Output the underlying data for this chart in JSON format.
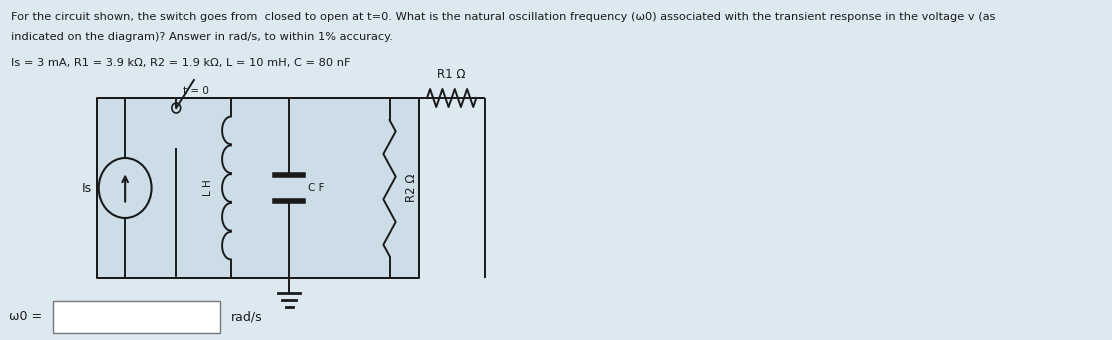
{
  "title_line1": "For the circuit shown, the switch goes from  closed to open at t=0. What is the natural oscillation frequency (ω0) associated with the transient response in the voltage v (as",
  "title_line2": "indicated on the diagram)? Answer in rad/s, to within 1% accuracy.",
  "params": "Is = 3 mA, R1 = 3.9 kΩ, R2 = 1.9 kΩ, L = 10 mH, C = 80 nF",
  "bg_color": "#dce9f0",
  "text_color": "#1a1a1a",
  "box_bg": "#ccdde8",
  "label_R1": "R1 Ω",
  "label_R2": "R2 Ω",
  "label_Is": "Is",
  "label_t0": "t = 0",
  "label_w0": "ω0 =",
  "label_rads": "rad/s",
  "input_box_color": "#ffffff",
  "col": "#1a1a1a",
  "lw": 1.4
}
